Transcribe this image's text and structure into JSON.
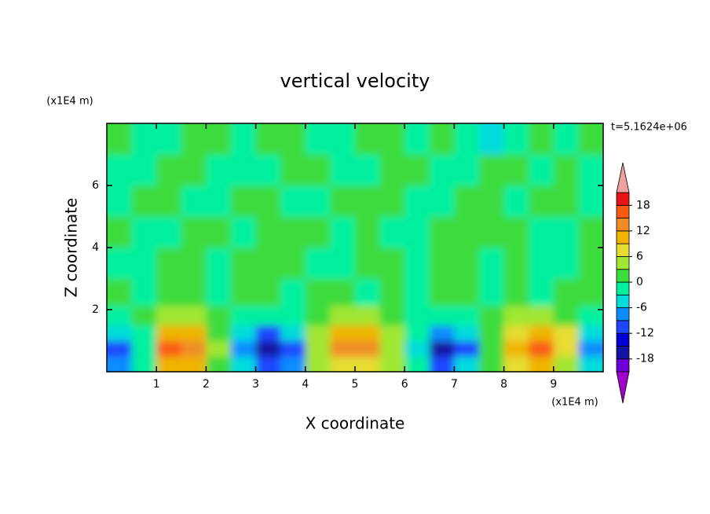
{
  "chart_data": {
    "type": "contour",
    "title": "vertical velocity",
    "xlabel": "X coordinate",
    "ylabel": "Z coordinate",
    "x_unit": "(x1E4 m)",
    "y_unit": "(x1E4 m)",
    "annotation": "t=5.1624e+06",
    "xlim": [
      0,
      10
    ],
    "ylim": [
      0,
      8
    ],
    "xticks": [
      1,
      2,
      3,
      4,
      5,
      6,
      7,
      8,
      9
    ],
    "yticks": [
      2,
      4,
      6
    ],
    "levels": [
      -21,
      -18,
      -15,
      -12,
      -9,
      -6,
      -3,
      0,
      3,
      6,
      9,
      12,
      15,
      18,
      21
    ],
    "colors": [
      "#a000c8",
      "#6e00dc",
      "#1414a0",
      "#0000d2",
      "#1e46ff",
      "#0a8cff",
      "#00dcdc",
      "#00f0a0",
      "#3cdc3c",
      "#a0e632",
      "#e6dc32",
      "#f0b400",
      "#f08c28",
      "#fa5a14",
      "#e61414",
      "#f0a0a0"
    ],
    "colorbar_ticks": [
      -18,
      -12,
      -6,
      0,
      6,
      12,
      18
    ],
    "x": [
      0.25,
      0.75,
      1.25,
      1.75,
      2.25,
      2.75,
      3.25,
      3.75,
      4.25,
      4.75,
      5.25,
      5.75,
      6.25,
      6.75,
      7.25,
      7.75,
      8.25,
      8.75,
      9.25,
      9.75
    ],
    "y": [
      0.25,
      0.75,
      1.25,
      1.75,
      2.5,
      3.5,
      4.5,
      5.5,
      6.5,
      7.5
    ],
    "z": [
      [
        -8,
        -2,
        10,
        9,
        2,
        -5,
        -12,
        -7,
        3,
        8,
        8,
        3,
        -3,
        -12,
        -6,
        1,
        7,
        11,
        5,
        -5
      ],
      [
        -12,
        -3,
        15,
        14,
        3,
        -8,
        -16,
        -10,
        4,
        12,
        12,
        5,
        -4,
        -17,
        -10,
        2,
        10,
        16,
        8,
        -7
      ],
      [
        -6,
        -1,
        10,
        9,
        2,
        -5,
        -10,
        -6,
        3,
        9,
        9,
        4,
        -2,
        -8,
        -5,
        2,
        8,
        10,
        6,
        -4
      ],
      [
        -2,
        1,
        4,
        4,
        1,
        -2,
        -3,
        -2,
        2,
        4,
        4,
        2,
        -1,
        -2,
        -1,
        1,
        3,
        4,
        2,
        -1
      ],
      [
        1,
        -1,
        1,
        2,
        -1,
        1,
        2,
        -1,
        1,
        2,
        -1,
        1,
        -1,
        1,
        2,
        -1,
        1,
        -1,
        1,
        2
      ],
      [
        -1,
        -1,
        1,
        1,
        -1,
        1,
        2,
        1,
        -1,
        -1,
        1,
        2,
        -1,
        1,
        1,
        -1,
        1,
        -1,
        -1,
        1
      ],
      [
        1,
        -1,
        -1,
        1,
        1,
        -1,
        1,
        2,
        1,
        -1,
        1,
        -1,
        -1,
        1,
        1,
        2,
        1,
        -1,
        -1,
        1
      ],
      [
        -1,
        1,
        1,
        -1,
        -1,
        1,
        1,
        -1,
        -1,
        1,
        1,
        1,
        -1,
        -1,
        1,
        1,
        -1,
        1,
        1,
        -1
      ],
      [
        -1,
        -1,
        1,
        1,
        -1,
        -3,
        -1,
        1,
        1,
        -1,
        -1,
        1,
        1,
        -1,
        -1,
        1,
        1,
        -1,
        1,
        -1
      ],
      [
        1,
        -1,
        -1,
        1,
        1,
        -1,
        1,
        1,
        -1,
        -1,
        1,
        1,
        -1,
        1,
        -2,
        -4,
        -1,
        1,
        -1,
        1
      ]
    ]
  }
}
